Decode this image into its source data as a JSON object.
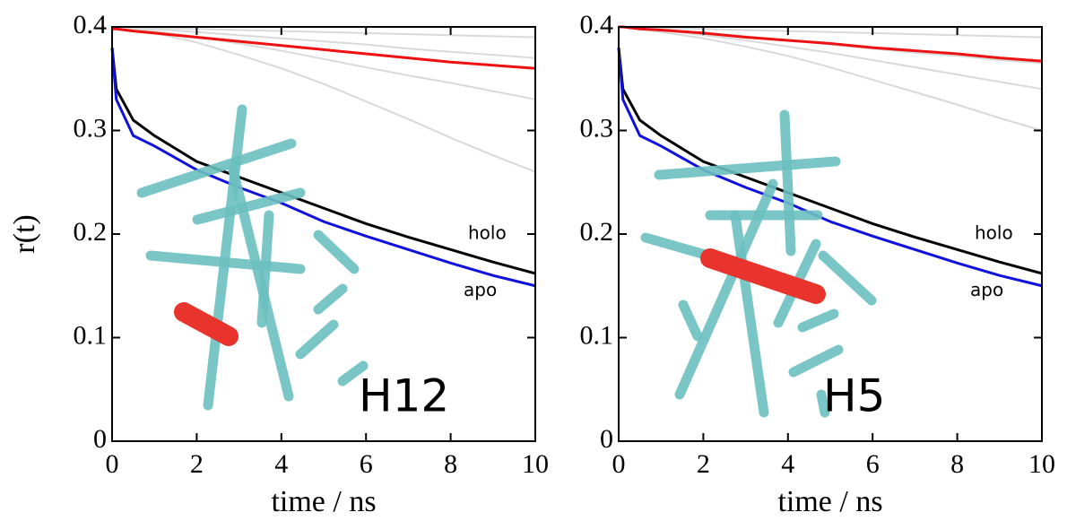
{
  "chart_data": [
    {
      "type": "line",
      "xlabel": "time / ns",
      "ylabel": "r(t)",
      "x": [
        0,
        0.1,
        0.5,
        1,
        2,
        3,
        4,
        5,
        6,
        7,
        8,
        9,
        10
      ],
      "xlim": [
        0,
        10
      ],
      "ylim": [
        0,
        0.4
      ],
      "xticks": [
        0,
        2,
        4,
        6,
        8,
        10
      ],
      "yticks": [
        0,
        0.1,
        0.2,
        0.3,
        0.4
      ],
      "series": [
        {
          "color": "#d9d9d9",
          "values": [
            0.4,
            0.4,
            0.399,
            0.399,
            0.398,
            0.397,
            0.396,
            0.395,
            0.394,
            0.393,
            0.392,
            0.391,
            0.39
          ]
        },
        {
          "color": "#d9d9d9",
          "values": [
            0.4,
            0.4,
            0.399,
            0.398,
            0.395,
            0.392,
            0.389,
            0.386,
            0.383,
            0.379,
            0.376,
            0.373,
            0.37
          ]
        },
        {
          "color": "#d9d9d9",
          "values": [
            0.4,
            0.4,
            0.398,
            0.396,
            0.39,
            0.384,
            0.377,
            0.369,
            0.361,
            0.353,
            0.346,
            0.338,
            0.33
          ]
        },
        {
          "color": "#d9d9d9",
          "values": [
            0.4,
            0.4,
            0.397,
            0.394,
            0.385,
            0.373,
            0.36,
            0.345,
            0.328,
            0.311,
            0.293,
            0.276,
            0.26
          ]
        },
        {
          "color": "#ee1111",
          "values": [
            0.398,
            0.398,
            0.396,
            0.394,
            0.39,
            0.386,
            0.382,
            0.378,
            0.374,
            0.37,
            0.366,
            0.363,
            0.36
          ]
        },
        {
          "color": "#000000",
          "values": [
            0.38,
            0.34,
            0.31,
            0.295,
            0.27,
            0.255,
            0.24,
            0.225,
            0.21,
            0.197,
            0.185,
            0.173,
            0.162
          ]
        },
        {
          "color": "#1111dd",
          "values": [
            0.38,
            0.33,
            0.295,
            0.285,
            0.262,
            0.245,
            0.23,
            0.212,
            0.198,
            0.185,
            0.172,
            0.16,
            0.15
          ]
        }
      ],
      "annotations": [
        "holo",
        "apo"
      ],
      "inset_label": "H12"
    },
    {
      "type": "line",
      "xlabel": "time / ns",
      "x": [
        0,
        0.1,
        0.5,
        1,
        2,
        3,
        4,
        5,
        6,
        7,
        8,
        9,
        10
      ],
      "xlim": [
        0,
        10
      ],
      "ylim": [
        0,
        0.4
      ],
      "xticks": [
        0,
        2,
        4,
        6,
        8,
        10
      ],
      "yticks": [
        0,
        0.1,
        0.2,
        0.3,
        0.4
      ],
      "series": [
        {
          "color": "#d9d9d9",
          "values": [
            0.4,
            0.4,
            0.399,
            0.399,
            0.398,
            0.397,
            0.396,
            0.395,
            0.394,
            0.393,
            0.392,
            0.391,
            0.39
          ]
        },
        {
          "color": "#d9d9d9",
          "values": [
            0.4,
            0.4,
            0.399,
            0.398,
            0.394,
            0.391,
            0.387,
            0.383,
            0.379,
            0.375,
            0.372,
            0.368,
            0.365
          ]
        },
        {
          "color": "#d9d9d9",
          "values": [
            0.4,
            0.4,
            0.398,
            0.397,
            0.392,
            0.387,
            0.381,
            0.375,
            0.368,
            0.361,
            0.354,
            0.347,
            0.34
          ]
        },
        {
          "color": "#d9d9d9",
          "values": [
            0.4,
            0.4,
            0.398,
            0.395,
            0.389,
            0.381,
            0.372,
            0.361,
            0.349,
            0.337,
            0.325,
            0.312,
            0.3
          ]
        },
        {
          "color": "#ee1111",
          "values": [
            0.4,
            0.4,
            0.398,
            0.397,
            0.394,
            0.39,
            0.387,
            0.384,
            0.38,
            0.377,
            0.374,
            0.37,
            0.367
          ]
        },
        {
          "color": "#000000",
          "values": [
            0.38,
            0.34,
            0.31,
            0.295,
            0.27,
            0.255,
            0.24,
            0.225,
            0.21,
            0.197,
            0.185,
            0.173,
            0.162
          ]
        },
        {
          "color": "#1111dd",
          "values": [
            0.38,
            0.33,
            0.295,
            0.285,
            0.262,
            0.245,
            0.23,
            0.212,
            0.198,
            0.185,
            0.172,
            0.16,
            0.15
          ]
        }
      ],
      "annotations": [
        "holo",
        "apo"
      ],
      "inset_label": "H5"
    }
  ]
}
